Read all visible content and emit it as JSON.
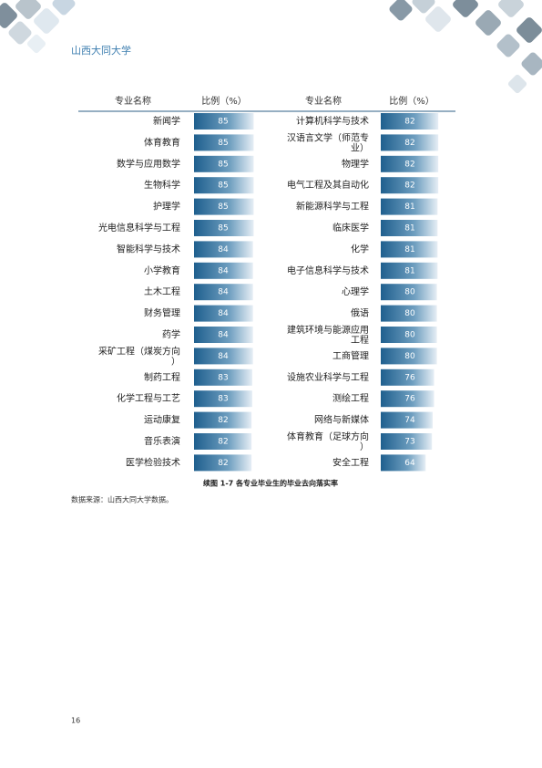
{
  "header": {
    "title": "山西大同大学"
  },
  "table": {
    "columns": [
      "专业名称",
      "比例（%）",
      "专业名称",
      "比例（%）"
    ],
    "left": [
      {
        "name": "新闻学",
        "value": 85
      },
      {
        "name": "体育教育",
        "value": 85
      },
      {
        "name": "数学与应用数学",
        "value": 85
      },
      {
        "name": "生物科学",
        "value": 85
      },
      {
        "name": "护理学",
        "value": 85
      },
      {
        "name": "光电信息科学与工程",
        "value": 85
      },
      {
        "name": "智能科学与技术",
        "value": 84
      },
      {
        "name": "小学教育",
        "value": 84
      },
      {
        "name": "土木工程",
        "value": 84
      },
      {
        "name": "财务管理",
        "value": 84
      },
      {
        "name": "药学",
        "value": 84
      },
      {
        "name": "采矿工程（煤炭方向）",
        "value": 84
      },
      {
        "name": "制药工程",
        "value": 83
      },
      {
        "name": "化学工程与工艺",
        "value": 83
      },
      {
        "name": "运动康复",
        "value": 82
      },
      {
        "name": "音乐表演",
        "value": 82
      },
      {
        "name": "医学检验技术",
        "value": 82
      }
    ],
    "right": [
      {
        "name": "计算机科学与技术",
        "value": 82
      },
      {
        "name": "汉语言文学（师范专业）",
        "value": 82
      },
      {
        "name": "物理学",
        "value": 82
      },
      {
        "name": "电气工程及其自动化",
        "value": 82
      },
      {
        "name": "新能源科学与工程",
        "value": 81
      },
      {
        "name": "临床医学",
        "value": 81
      },
      {
        "name": "化学",
        "value": 81
      },
      {
        "name": "电子信息科学与技术",
        "value": 81
      },
      {
        "name": "心理学",
        "value": 80
      },
      {
        "name": "俄语",
        "value": 80
      },
      {
        "name": "建筑环境与能源应用工程",
        "value": 80
      },
      {
        "name": "工商管理",
        "value": 80
      },
      {
        "name": "设施农业科学与工程",
        "value": 76
      },
      {
        "name": "测绘工程",
        "value": 76
      },
      {
        "name": "网络与新媒体",
        "value": 74
      },
      {
        "name": "体育教育（足球方向）",
        "value": 73
      },
      {
        "name": "安全工程",
        "value": 64
      }
    ]
  },
  "caption": "续图 1-7 各专业毕业生的毕业去向落实率",
  "source": "数据来源：山西大同大学数据。",
  "page_number": 16
}
